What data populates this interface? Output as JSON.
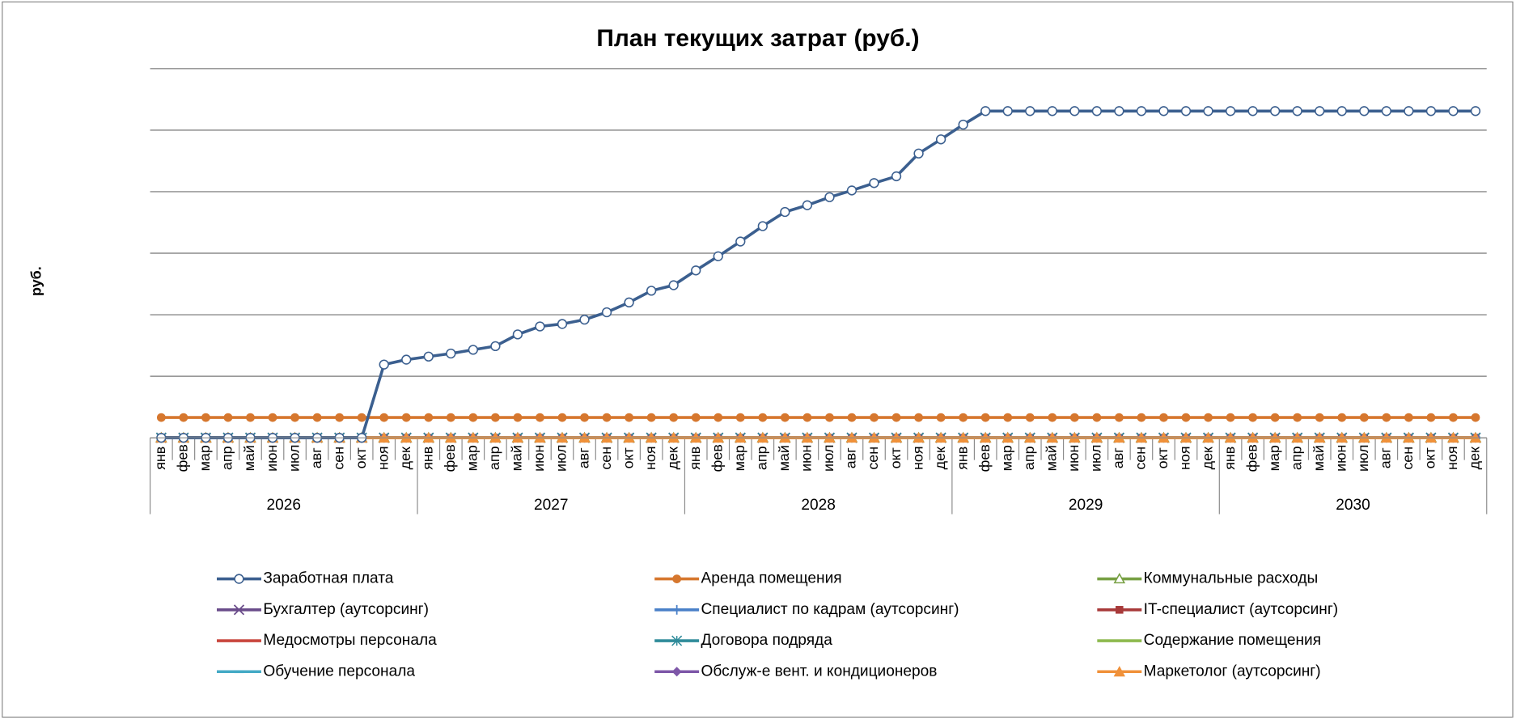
{
  "chart_data": {
    "type": "line",
    "title": "План текущих затрат (руб.)",
    "y_label": "руб.",
    "categories": [
      "янв",
      "фев",
      "мар",
      "апр",
      "май",
      "июн",
      "июл",
      "авг",
      "сен",
      "окт",
      "ноя",
      "дек",
      "янв",
      "фев",
      "мар",
      "апр",
      "май",
      "июн",
      "июл",
      "авг",
      "сен",
      "окт",
      "ноя",
      "дек",
      "янв",
      "фев",
      "мар",
      "апр",
      "май",
      "июн",
      "июл",
      "авг",
      "сен",
      "окт",
      "ноя",
      "дек",
      "янв",
      "фев",
      "мар",
      "апр",
      "май",
      "июн",
      "июл",
      "авг",
      "сен",
      "окт",
      "ноя",
      "дек",
      "янв",
      "фев",
      "мар",
      "апр",
      "май",
      "июн",
      "июл",
      "авг",
      "сен",
      "окт",
      "ноя",
      "дек"
    ],
    "years": [
      "2026",
      "2027",
      "2028",
      "2029",
      "2030"
    ],
    "ylim": [
      0,
      6
    ],
    "yticks": [
      0,
      1,
      2,
      3,
      4,
      5,
      6
    ],
    "grid": true,
    "series": [
      {
        "name": "Заработная плата",
        "color": "#3b5f8f",
        "marker": "circle-open",
        "values": [
          0,
          0,
          0,
          0,
          0,
          0,
          0,
          0,
          0,
          0,
          1.19,
          1.27,
          1.32,
          1.37,
          1.43,
          1.49,
          1.68,
          1.81,
          1.85,
          1.92,
          2.04,
          2.2,
          2.39,
          2.48,
          2.72,
          2.95,
          3.19,
          3.44,
          3.67,
          3.78,
          3.91,
          4.02,
          4.14,
          4.25,
          4.62,
          4.85,
          5.09,
          5.31,
          5.31,
          5.31,
          5.31,
          5.31,
          5.31,
          5.31,
          5.31,
          5.31,
          5.31,
          5.31,
          5.31,
          5.31,
          5.31,
          5.31,
          5.31,
          5.31,
          5.31,
          5.31,
          5.31,
          5.31,
          5.31,
          5.31
        ]
      },
      {
        "name": "Аренда помещения",
        "color": "#d6772e",
        "marker": "circle",
        "values": [
          0.33,
          0.33,
          0.33,
          0.33,
          0.33,
          0.33,
          0.33,
          0.33,
          0.33,
          0.33,
          0.33,
          0.33,
          0.33,
          0.33,
          0.33,
          0.33,
          0.33,
          0.33,
          0.33,
          0.33,
          0.33,
          0.33,
          0.33,
          0.33,
          0.33,
          0.33,
          0.33,
          0.33,
          0.33,
          0.33,
          0.33,
          0.33,
          0.33,
          0.33,
          0.33,
          0.33,
          0.33,
          0.33,
          0.33,
          0.33,
          0.33,
          0.33,
          0.33,
          0.33,
          0.33,
          0.33,
          0.33,
          0.33,
          0.33,
          0.33,
          0.33,
          0.33,
          0.33,
          0.33,
          0.33,
          0.33,
          0.33,
          0.33,
          0.33,
          0.33
        ]
      },
      {
        "name": "Коммунальные расходы",
        "color": "#77a043",
        "marker": "triangle-open",
        "values": [
          0,
          0,
          0,
          0,
          0,
          0,
          0,
          0,
          0,
          0,
          0,
          0,
          0,
          0,
          0,
          0,
          0,
          0,
          0,
          0,
          0,
          0,
          0,
          0,
          0,
          0,
          0,
          0,
          0,
          0,
          0,
          0,
          0,
          0,
          0,
          0,
          0,
          0,
          0,
          0,
          0,
          0,
          0,
          0,
          0,
          0,
          0,
          0,
          0,
          0,
          0,
          0,
          0,
          0,
          0,
          0,
          0,
          0,
          0,
          0
        ]
      },
      {
        "name": "Бухгалтер (аутсорсинг)",
        "color": "#6a4c8a",
        "marker": "x",
        "values": [
          0,
          0,
          0,
          0,
          0,
          0,
          0,
          0,
          0,
          0,
          0,
          0,
          0,
          0,
          0,
          0,
          0,
          0,
          0,
          0,
          0,
          0,
          0,
          0,
          0,
          0,
          0,
          0,
          0,
          0,
          0,
          0,
          0,
          0,
          0,
          0,
          0,
          0,
          0,
          0,
          0,
          0,
          0,
          0,
          0,
          0,
          0,
          0,
          0,
          0,
          0,
          0,
          0,
          0,
          0,
          0,
          0,
          0,
          0,
          0
        ]
      },
      {
        "name": "Специалист по кадрам (аутсорсинг)",
        "color": "#4a80c8",
        "marker": "plus",
        "values": [
          0,
          0,
          0,
          0,
          0,
          0,
          0,
          0,
          0,
          0,
          0,
          0,
          0,
          0,
          0,
          0,
          0,
          0,
          0,
          0,
          0,
          0,
          0,
          0,
          0,
          0,
          0,
          0,
          0,
          0,
          0,
          0,
          0,
          0,
          0,
          0,
          0,
          0,
          0,
          0,
          0,
          0,
          0,
          0,
          0,
          0,
          0,
          0,
          0,
          0,
          0,
          0,
          0,
          0,
          0,
          0,
          0,
          0,
          0,
          0
        ]
      },
      {
        "name": "IT-специалист (аутсорсинг)",
        "color": "#a83a3a",
        "marker": "square",
        "values": [
          0,
          0,
          0,
          0,
          0,
          0,
          0,
          0,
          0,
          0,
          0,
          0,
          0,
          0,
          0,
          0,
          0,
          0,
          0,
          0,
          0,
          0,
          0,
          0,
          0,
          0,
          0,
          0,
          0,
          0,
          0,
          0,
          0,
          0,
          0,
          0,
          0,
          0,
          0,
          0,
          0,
          0,
          0,
          0,
          0,
          0,
          0,
          0,
          0,
          0,
          0,
          0,
          0,
          0,
          0,
          0,
          0,
          0,
          0,
          0
        ]
      },
      {
        "name": "Медосмотры персонала",
        "color": "#c9463d",
        "marker": "none",
        "values": [
          0,
          0,
          0,
          0,
          0,
          0,
          0,
          0,
          0,
          0,
          0,
          0,
          0,
          0,
          0,
          0,
          0,
          0,
          0,
          0,
          0,
          0,
          0,
          0,
          0,
          0,
          0,
          0,
          0,
          0,
          0,
          0,
          0,
          0,
          0,
          0,
          0,
          0,
          0,
          0,
          0,
          0,
          0,
          0,
          0,
          0,
          0,
          0,
          0,
          0,
          0,
          0,
          0,
          0,
          0,
          0,
          0,
          0,
          0,
          0
        ]
      },
      {
        "name": "Договора подряда",
        "color": "#2f8b9a",
        "marker": "asterisk",
        "values": [
          0,
          0,
          0,
          0,
          0,
          0,
          0,
          0,
          0,
          0,
          0,
          0,
          0,
          0,
          0,
          0,
          0,
          0,
          0,
          0,
          0,
          0,
          0,
          0,
          0,
          0,
          0,
          0,
          0,
          0,
          0,
          0,
          0,
          0,
          0,
          0,
          0,
          0,
          0,
          0,
          0,
          0,
          0,
          0,
          0,
          0,
          0,
          0,
          0,
          0,
          0,
          0,
          0,
          0,
          0,
          0,
          0,
          0,
          0,
          0
        ]
      },
      {
        "name": "Содержание помещения",
        "color": "#8db94e",
        "marker": "none",
        "values": [
          0,
          0,
          0,
          0,
          0,
          0,
          0,
          0,
          0,
          0,
          0,
          0,
          0,
          0,
          0,
          0,
          0,
          0,
          0,
          0,
          0,
          0,
          0,
          0,
          0,
          0,
          0,
          0,
          0,
          0,
          0,
          0,
          0,
          0,
          0,
          0,
          0,
          0,
          0,
          0,
          0,
          0,
          0,
          0,
          0,
          0,
          0,
          0,
          0,
          0,
          0,
          0,
          0,
          0,
          0,
          0,
          0,
          0,
          0,
          0
        ]
      },
      {
        "name": "Обучение персонала",
        "color": "#44aac6",
        "marker": "dash",
        "values": [
          0,
          0,
          0,
          0,
          0,
          0,
          0,
          0,
          0,
          0,
          0,
          0,
          0,
          0,
          0,
          0,
          0,
          0,
          0,
          0,
          0,
          0,
          0,
          0,
          0,
          0,
          0,
          0,
          0,
          0,
          0,
          0,
          0,
          0,
          0,
          0,
          0,
          0,
          0,
          0,
          0,
          0,
          0,
          0,
          0,
          0,
          0,
          0,
          0,
          0,
          0,
          0,
          0,
          0,
          0,
          0,
          0,
          0,
          0,
          0
        ]
      },
      {
        "name": "Обслуж-е вент. и кондиционеров",
        "color": "#7e57a8",
        "marker": "diamond",
        "values": [
          0,
          0,
          0,
          0,
          0,
          0,
          0,
          0,
          0,
          0,
          0,
          0,
          0,
          0,
          0,
          0,
          0,
          0,
          0,
          0,
          0,
          0,
          0,
          0,
          0,
          0,
          0,
          0,
          0,
          0,
          0,
          0,
          0,
          0,
          0,
          0,
          0,
          0,
          0,
          0,
          0,
          0,
          0,
          0,
          0,
          0,
          0,
          0,
          0,
          0,
          0,
          0,
          0,
          0,
          0,
          0,
          0,
          0,
          0,
          0
        ]
      },
      {
        "name": "Маркетолог (аутсорсинг)",
        "color": "#f0913a",
        "marker": "triangle",
        "values": [
          0,
          0,
          0,
          0,
          0,
          0,
          0,
          0,
          0,
          0,
          0,
          0,
          0,
          0,
          0,
          0,
          0,
          0,
          0,
          0,
          0,
          0,
          0,
          0,
          0,
          0,
          0,
          0,
          0,
          0,
          0,
          0,
          0,
          0,
          0,
          0,
          0,
          0,
          0,
          0,
          0,
          0,
          0,
          0,
          0,
          0,
          0,
          0,
          0,
          0,
          0,
          0,
          0,
          0,
          0,
          0,
          0,
          0,
          0,
          0
        ]
      }
    ]
  }
}
